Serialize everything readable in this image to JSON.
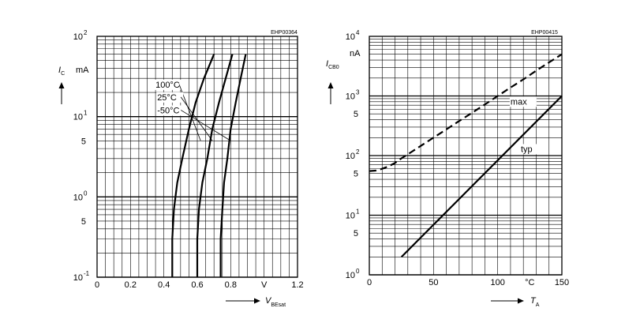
{
  "chart_data": [
    {
      "type": "line",
      "code": "EHP00364",
      "xlabel": {
        "symbol": "V",
        "sub": "BEsat"
      },
      "ylabel": {
        "symbol": "I",
        "sub": "C",
        "unit": "mA"
      },
      "x_scale": "linear",
      "y_scale": "log",
      "xlim": [
        0,
        1.2
      ],
      "ylim": [
        0.1,
        100
      ],
      "x_ticks": [
        {
          "v": 0,
          "label": "0"
        },
        {
          "v": 0.2,
          "label": "0.2"
        },
        {
          "v": 0.4,
          "label": "0.4"
        },
        {
          "v": 0.6,
          "label": "0.6"
        },
        {
          "v": 0.8,
          "label": "0.8"
        },
        {
          "v": 1.0,
          "label": "V"
        },
        {
          "v": 1.2,
          "label": "1.2"
        }
      ],
      "y_ticks": [
        {
          "v": 100,
          "base": "10",
          "exp": "2"
        },
        {
          "v": 10,
          "base": "10",
          "exp": "1"
        },
        {
          "v": 5,
          "base": "5",
          "exp": ""
        },
        {
          "v": 1,
          "base": "10",
          "exp": "0"
        },
        {
          "v": 0.5,
          "base": "5",
          "exp": ""
        },
        {
          "v": 0.1,
          "base": "10",
          "exp": "-1"
        }
      ],
      "series": [
        {
          "name": "100°C",
          "style": "solid",
          "points": [
            [
              0.45,
              0.1
            ],
            [
              0.45,
              0.3
            ],
            [
              0.46,
              0.7
            ],
            [
              0.48,
              1.5
            ],
            [
              0.51,
              3
            ],
            [
              0.55,
              7
            ],
            [
              0.59,
              15
            ],
            [
              0.64,
              30
            ],
            [
              0.7,
              60
            ]
          ]
        },
        {
          "name": "25°C",
          "style": "solid",
          "points": [
            [
              0.6,
              0.1
            ],
            [
              0.6,
              0.3
            ],
            [
              0.61,
              0.7
            ],
            [
              0.63,
              1.5
            ],
            [
              0.66,
              3
            ],
            [
              0.69,
              7
            ],
            [
              0.73,
              15
            ],
            [
              0.77,
              30
            ],
            [
              0.81,
              60
            ]
          ]
        },
        {
          "name": "-50°C",
          "style": "solid",
          "points": [
            [
              0.74,
              0.1
            ],
            [
              0.74,
              0.3
            ],
            [
              0.75,
              0.7
            ],
            [
              0.76,
              1.5
            ],
            [
              0.78,
              3
            ],
            [
              0.8,
              7
            ],
            [
              0.83,
              15
            ],
            [
              0.86,
              30
            ],
            [
              0.89,
              60
            ]
          ]
        }
      ],
      "annotations": [
        {
          "text": "100°C",
          "x": 0.35,
          "y": 23,
          "target": [
            0.62,
            5
          ]
        },
        {
          "text": "25°C",
          "x": 0.36,
          "y": 16,
          "target": [
            0.69,
            5
          ]
        },
        {
          "text": "-50°C",
          "x": 0.36,
          "y": 11,
          "target": [
            0.8,
            5
          ]
        }
      ]
    },
    {
      "type": "line",
      "code": "EHP00415",
      "xlabel": {
        "symbol": "T",
        "sub": "A"
      },
      "ylabel": {
        "symbol": "I",
        "sub": "CB0",
        "unit": "nA"
      },
      "x_scale": "linear",
      "y_scale": "log",
      "xlim": [
        0,
        150
      ],
      "ylim": [
        1,
        10000
      ],
      "x_ticks": [
        {
          "v": 0,
          "label": "0"
        },
        {
          "v": 50,
          "label": "50"
        },
        {
          "v": 100,
          "label": "100"
        },
        {
          "v": 125,
          "label": "°C"
        },
        {
          "v": 150,
          "label": "150"
        }
      ],
      "y_ticks": [
        {
          "v": 10000,
          "base": "10",
          "exp": "4"
        },
        {
          "v": 1000,
          "base": "10",
          "exp": "3"
        },
        {
          "v": 500,
          "base": "5",
          "exp": ""
        },
        {
          "v": 100,
          "base": "10",
          "exp": "2"
        },
        {
          "v": 50,
          "base": "5",
          "exp": ""
        },
        {
          "v": 10,
          "base": "10",
          "exp": "1"
        },
        {
          "v": 5,
          "base": "5",
          "exp": ""
        },
        {
          "v": 1,
          "base": "10",
          "exp": "0"
        }
      ],
      "series": [
        {
          "name": "max",
          "style": "dashed",
          "points": [
            [
              0,
              55
            ],
            [
              5,
              56
            ],
            [
              10,
              60
            ],
            [
              15,
              66
            ],
            [
              20,
              75
            ],
            [
              25,
              90
            ],
            [
              30,
              105
            ],
            [
              40,
              145
            ],
            [
              50,
              200
            ],
            [
              60,
              275
            ],
            [
              70,
              380
            ],
            [
              80,
              520
            ],
            [
              90,
              720
            ],
            [
              100,
              1000
            ],
            [
              110,
              1380
            ],
            [
              120,
              1900
            ],
            [
              130,
              2650
            ],
            [
              140,
              3650
            ],
            [
              150,
              5000
            ]
          ]
        },
        {
          "name": "typ",
          "style": "solid",
          "points": [
            [
              25,
              2
            ],
            [
              150,
              1000
            ]
          ]
        }
      ],
      "annotations": [
        {
          "text": "max",
          "x": 110,
          "y": 720
        },
        {
          "text": "typ",
          "x": 118,
          "y": 115
        }
      ]
    }
  ]
}
